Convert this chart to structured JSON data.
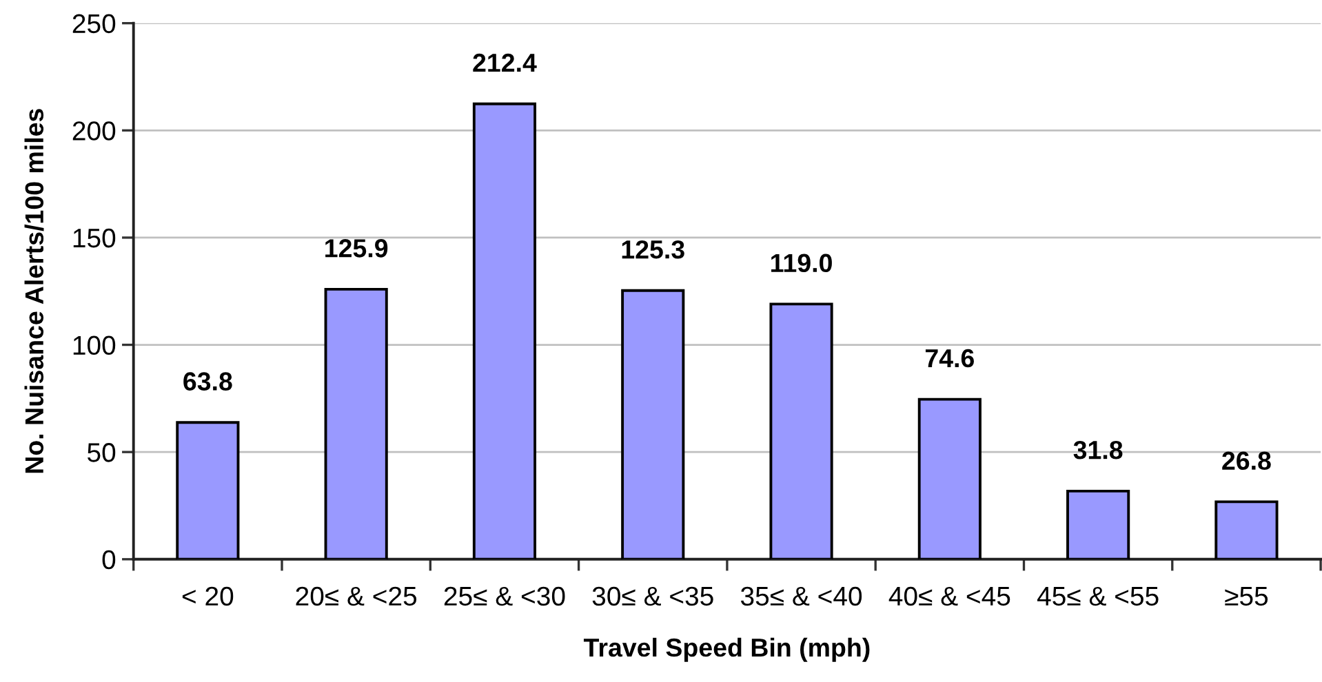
{
  "chart_data": {
    "type": "bar",
    "xlabel": "Travel Speed Bin (mph)",
    "ylabel": "No. Nuisance Alerts/100 miles",
    "categories": [
      "< 20",
      "20≤ & <25",
      "25≤ & <30",
      "30≤ & <35",
      "35≤ & <40",
      "40≤ & <45",
      "45≤ & <55",
      "≥55"
    ],
    "values": [
      63.8,
      125.9,
      212.4,
      125.3,
      119.0,
      74.6,
      31.8,
      26.8
    ],
    "value_labels": [
      "63.8",
      "125.9",
      "212.4",
      "125.3",
      "119.0",
      "74.6",
      "31.8",
      "26.8"
    ],
    "color": "#9999ff",
    "ylim": [
      0,
      250
    ],
    "yticks": [
      0,
      50,
      100,
      150,
      200,
      250
    ],
    "grid": "y"
  }
}
